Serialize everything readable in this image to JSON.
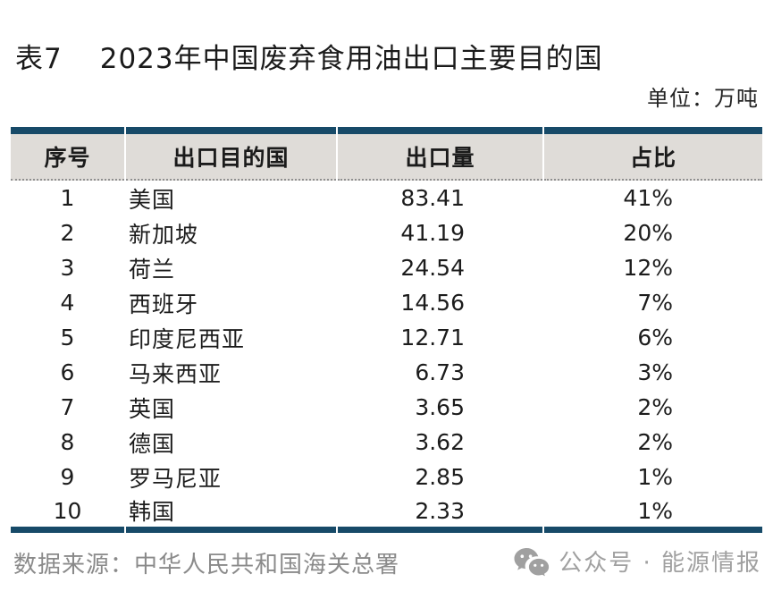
{
  "theme": {
    "accent": "#174a68",
    "header-bg": "#dfdcd8",
    "muted": "#8a8a8a",
    "badge": "#a0a0a0"
  },
  "title": {
    "label": "表7",
    "text": "2023年中国废弃食用油出口主要目的国"
  },
  "unit_note": "单位：万吨",
  "table": {
    "headers": [
      "序号",
      "出口目的国",
      "出口量",
      "占比"
    ],
    "rows": [
      {
        "no": "1",
        "country": "美国",
        "volume": "83.41",
        "share": "41%"
      },
      {
        "no": "2",
        "country": "新加坡",
        "volume": "41.19",
        "share": "20%"
      },
      {
        "no": "3",
        "country": "荷兰",
        "volume": "24.54",
        "share": "12%"
      },
      {
        "no": "4",
        "country": "西班牙",
        "volume": "14.56",
        "share": "7%"
      },
      {
        "no": "5",
        "country": "印度尼西亚",
        "volume": "12.71",
        "share": "6%"
      },
      {
        "no": "6",
        "country": "马来西亚",
        "volume": "6.73",
        "share": "3%"
      },
      {
        "no": "7",
        "country": "英国",
        "volume": "3.65",
        "share": "2%"
      },
      {
        "no": "8",
        "country": "德国",
        "volume": "3.62",
        "share": "2%"
      },
      {
        "no": "9",
        "country": "罗马尼亚",
        "volume": "2.85",
        "share": "1%"
      },
      {
        "no": "10",
        "country": "韩国",
        "volume": "2.33",
        "share": "1%"
      }
    ]
  },
  "footer": {
    "source": "数据来源：中华人民共和国海关总署",
    "badge": {
      "icon": "wechat-icon",
      "text": "公众号 · 能源情报"
    }
  }
}
